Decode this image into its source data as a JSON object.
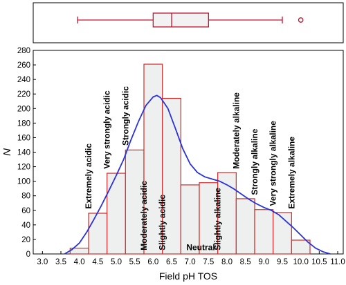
{
  "chart_data": [
    {
      "type": "boxplot",
      "orientation": "horizontal",
      "whisker_low": 3.95,
      "q1": 6.0,
      "median": 6.5,
      "q3": 7.5,
      "whisker_high": 9.5,
      "outliers": [
        10.0
      ],
      "colors": {
        "stroke": "#c8102e",
        "fill": "#f2f2f2"
      }
    },
    {
      "type": "histogram",
      "xlabel": "Field pH TOS",
      "ylabel": "N",
      "xlim": [
        2.75,
        11.15
      ],
      "ylim": [
        0,
        280
      ],
      "x_ticks": [
        "3.0",
        "3.5",
        "4.0",
        "4.5",
        "5.0",
        "5.5",
        "6.0",
        "6.5",
        "7.0",
        "7.5",
        "8.0",
        "8.5",
        "9.0",
        "9.5",
        "10.0",
        "10.5",
        "11.0"
      ],
      "y_ticks": [
        "0",
        "20",
        "40",
        "60",
        "80",
        "100",
        "120",
        "140",
        "160",
        "180",
        "200",
        "220",
        "240",
        "260",
        "280"
      ],
      "bins": [
        {
          "x0": 3.75,
          "x1": 4.25,
          "count": 8
        },
        {
          "x0": 4.25,
          "x1": 4.75,
          "count": 56
        },
        {
          "x0": 4.75,
          "x1": 5.25,
          "count": 111
        },
        {
          "x0": 5.25,
          "x1": 5.75,
          "count": 143
        },
        {
          "x0": 5.75,
          "x1": 6.25,
          "count": 261
        },
        {
          "x0": 6.25,
          "x1": 6.75,
          "count": 214
        },
        {
          "x0": 6.75,
          "x1": 7.25,
          "count": 95
        },
        {
          "x0": 7.25,
          "x1": 7.75,
          "count": 98
        },
        {
          "x0": 7.75,
          "x1": 8.25,
          "count": 112
        },
        {
          "x0": 8.25,
          "x1": 8.75,
          "count": 76
        },
        {
          "x0": 8.75,
          "x1": 9.25,
          "count": 61
        },
        {
          "x0": 9.25,
          "x1": 9.75,
          "count": 57
        },
        {
          "x0": 9.75,
          "x1": 10.25,
          "count": 19
        }
      ],
      "density_curve": {
        "x": [
          3.6,
          3.8,
          4.0,
          4.2,
          4.4,
          4.6,
          4.8,
          5.0,
          5.2,
          5.4,
          5.6,
          5.8,
          6.0,
          6.1,
          6.2,
          6.4,
          6.6,
          6.8,
          7.0,
          7.2,
          7.4,
          7.6,
          7.8,
          8.0,
          8.2,
          8.4,
          8.6,
          8.8,
          9.0,
          9.2,
          9.4,
          9.6,
          9.8,
          10.0,
          10.2,
          10.4,
          10.6,
          10.8
        ],
        "y": [
          0,
          6,
          15,
          30,
          48,
          67,
          87,
          108,
          130,
          157,
          182,
          204,
          216,
          218,
          215,
          200,
          173,
          145,
          124,
          112,
          106,
          103,
          100,
          95,
          89,
          82,
          75,
          69,
          64,
          60,
          54,
          45,
          36,
          26,
          16,
          8,
          3,
          0
        ]
      },
      "annotations": [
        {
          "text": "Extremely acidic",
          "x": 4.25,
          "y": 62
        },
        {
          "text": "Very strongly acidic",
          "x": 4.75,
          "y": 117
        },
        {
          "text": "Strongly acidic",
          "x": 5.25,
          "y": 149
        },
        {
          "text": "Moderately acidic",
          "x": 5.75,
          "y": 5
        },
        {
          "text": "Slightly acidic",
          "x": 6.25,
          "y": 5
        },
        {
          "text": "Neutral",
          "x": 6.9,
          "y": 5
        },
        {
          "text": "Slightly alkaline",
          "x": 7.75,
          "y": 5
        },
        {
          "text": "Moderately alkaline",
          "x": 8.25,
          "y": 117
        },
        {
          "text": "Strongly alkaline",
          "x": 8.75,
          "y": 81
        },
        {
          "text": "Very strongly alkaline",
          "x": 9.25,
          "y": 66
        },
        {
          "text": "Extremely alkaline",
          "x": 9.75,
          "y": 62
        }
      ],
      "colors": {
        "bar_stroke": "#d42a2a",
        "bar_fill": "#eef0ef",
        "curve": "#2a32d6"
      }
    }
  ]
}
